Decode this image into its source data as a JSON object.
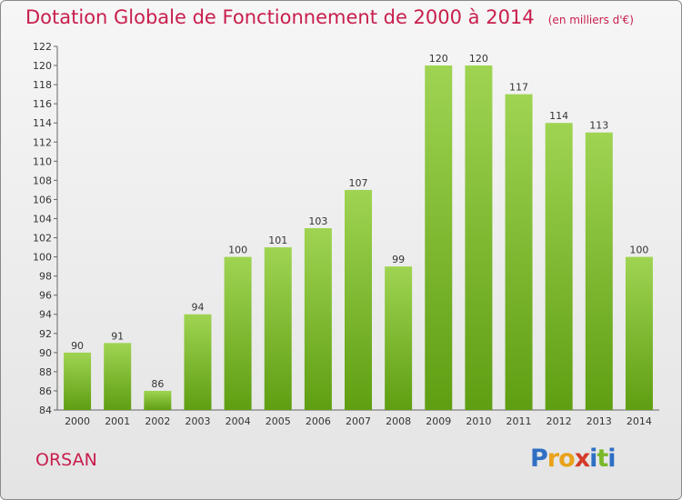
{
  "header": {
    "title": "Dotation Globale de Fonctionnement de 2000 à 2014",
    "unit": "(en milliers d'€)"
  },
  "footer": {
    "commune": "ORSAN",
    "logo": "Proxiti",
    "logo_letters": [
      "P",
      "r",
      "o",
      "x",
      "i",
      "t",
      "i"
    ]
  },
  "colors": {
    "title": "#c81e4c",
    "bar_top": "#9fd452",
    "bar_bottom": "#5f9e12",
    "logo_letters": [
      "#2f6fc4",
      "#e9a21b",
      "#e9a21b",
      "#d43b2a",
      "#2f6fc4",
      "#7ab829",
      "#2f6fc4"
    ]
  },
  "chart_data": {
    "type": "bar",
    "title": "Dotation Globale de Fonctionnement de 2000 à 2014",
    "subtitle": "(en milliers d'€)",
    "categories": [
      "2000",
      "2001",
      "2002",
      "2003",
      "2004",
      "2005",
      "2006",
      "2007",
      "2008",
      "2009",
      "2010",
      "2011",
      "2012",
      "2013",
      "2014"
    ],
    "values": [
      90,
      91,
      86,
      94,
      100,
      101,
      103,
      107,
      99,
      120,
      120,
      117,
      114,
      113,
      100
    ],
    "ylim": [
      84,
      122
    ],
    "yticks": [
      84,
      86,
      88,
      90,
      92,
      94,
      96,
      98,
      100,
      102,
      104,
      106,
      108,
      110,
      112,
      114,
      116,
      118,
      120,
      122
    ],
    "grid": false,
    "legend": "none"
  }
}
